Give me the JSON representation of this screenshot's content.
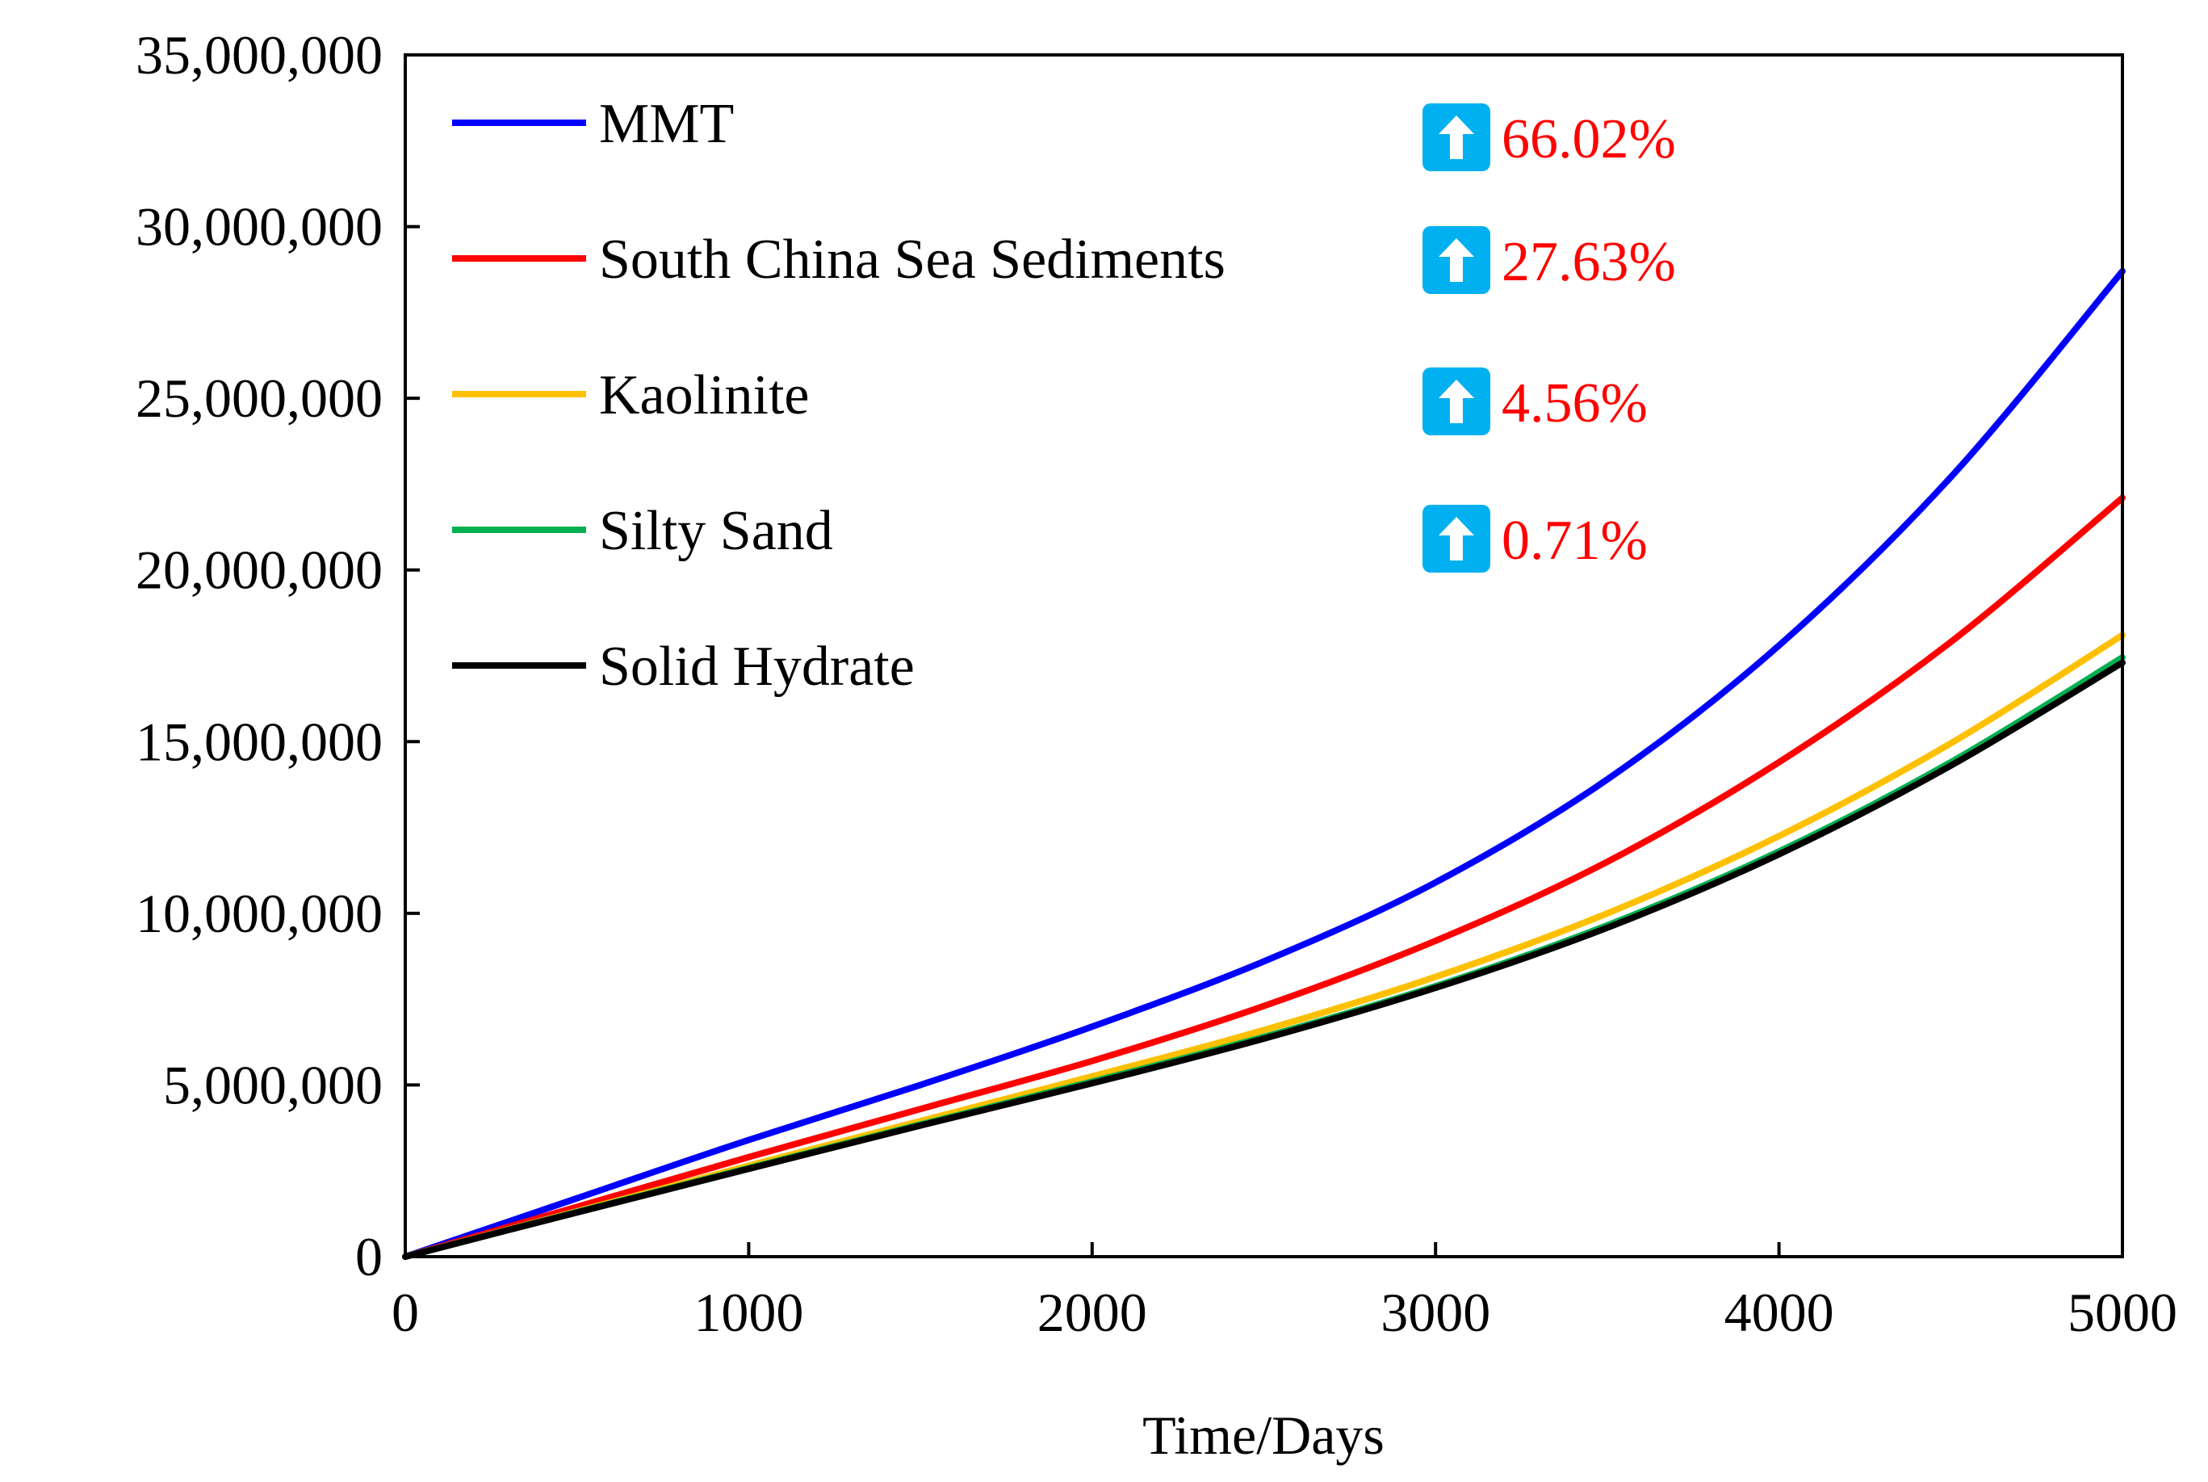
{
  "chart_data": {
    "type": "line",
    "title": "",
    "xlabel": "Time/Days",
    "ylabel": "",
    "xlim": [
      0,
      5000
    ],
    "ylim": [
      0,
      35000000
    ],
    "xticks": [
      0,
      1000,
      2000,
      3000,
      4000,
      5000
    ],
    "xtick_labels": [
      "0",
      "1000",
      "2000",
      "3000",
      "4000",
      "5000"
    ],
    "yticks": [
      0,
      5000000,
      10000000,
      15000000,
      20000000,
      25000000,
      30000000,
      35000000
    ],
    "ytick_labels": [
      "0",
      "5,000,000",
      "10,000,000",
      "15,000,000",
      "20,000,000",
      "25,000,000",
      "30,000,000",
      "35,000,000"
    ],
    "grid": false,
    "legend_position": "top-left",
    "x": [
      0,
      500,
      1000,
      1500,
      2000,
      2500,
      3000,
      3500,
      4000,
      4500,
      5000
    ],
    "series": [
      {
        "name": "MMT",
        "color": "#0000ff",
        "values": [
          0,
          1700000,
          3400000,
          5000000,
          6700000,
          8600000,
          10900000,
          13900000,
          17800000,
          22700000,
          28700000
        ]
      },
      {
        "name": "South China Sea Sediments",
        "color": "#ff0000",
        "values": [
          0,
          1450000,
          2900000,
          4300000,
          5700000,
          7300000,
          9200000,
          11500000,
          14400000,
          17900000,
          22100000
        ]
      },
      {
        "name": "Kaolinite",
        "color": "#ffc000",
        "values": [
          0,
          1320000,
          2650000,
          3950000,
          5250000,
          6600000,
          8150000,
          10000000,
          12250000,
          14950000,
          18100000
        ]
      },
      {
        "name": "Silty Sand",
        "color": "#00b050",
        "values": [
          0,
          1300000,
          2580000,
          3850000,
          5100000,
          6400000,
          7880000,
          9650000,
          11800000,
          14400000,
          17450000
        ]
      },
      {
        "name": "Solid Hydrate",
        "color": "#000000",
        "values": [
          0,
          1290000,
          2560000,
          3820000,
          5050000,
          6350000,
          7830000,
          9580000,
          11720000,
          14300000,
          17300000
        ]
      }
    ],
    "annotations": [
      {
        "text": "66.02%",
        "series": "MMT",
        "icon": "arrow-up-icon"
      },
      {
        "text": "27.63%",
        "series": "South China Sea Sediments",
        "icon": "arrow-up-icon"
      },
      {
        "text": "4.56%",
        "series": "Kaolinite",
        "icon": "arrow-up-icon"
      },
      {
        "text": "0.71%",
        "series": "Silty Sand",
        "icon": "arrow-up-icon"
      }
    ],
    "annotation_color": "#ff0000",
    "icon_color": "#00b0f0"
  }
}
